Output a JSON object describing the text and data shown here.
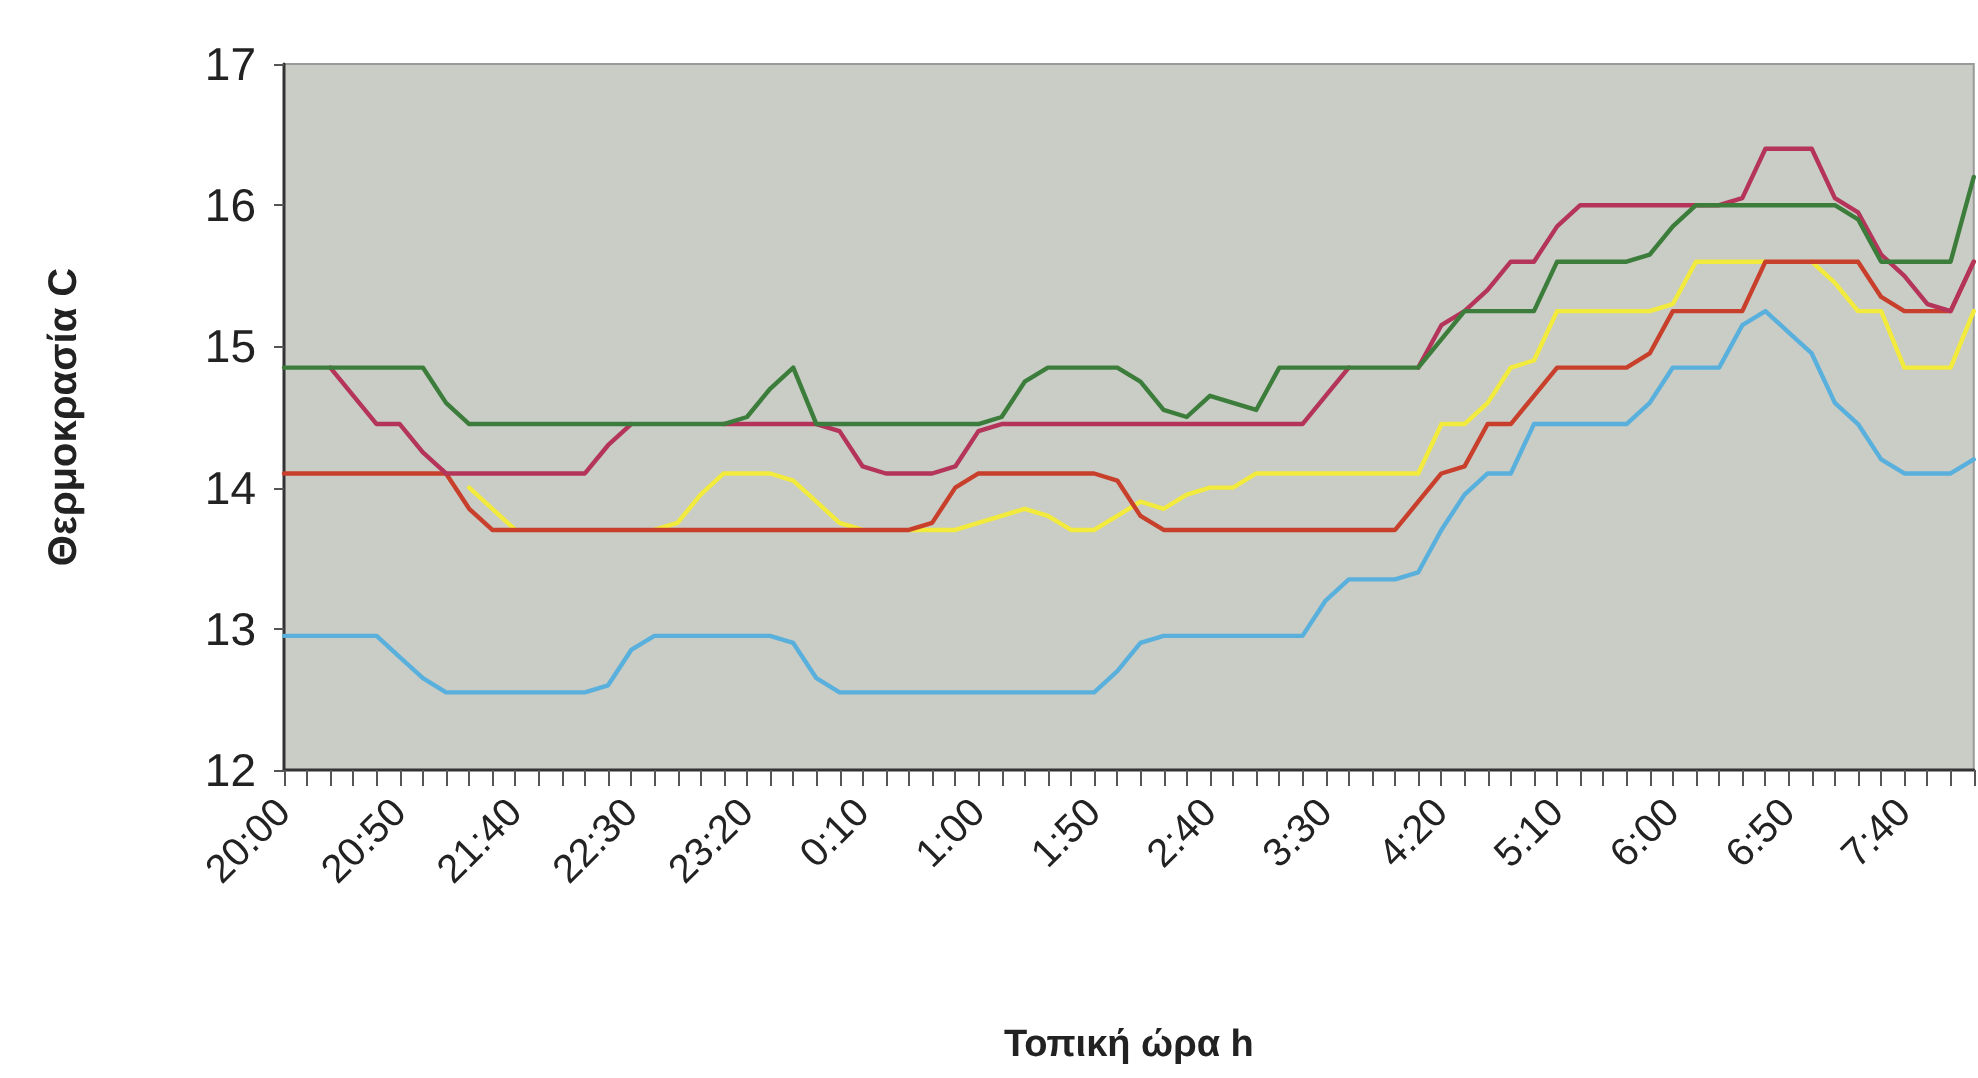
{
  "chart_data": {
    "type": "line",
    "xlabel": "Τοπική ώρα h",
    "ylabel": "Θερμοκρασία C",
    "marker": "none",
    "line_style": "solid",
    "grid": false,
    "categories": [
      "20:00",
      null,
      null,
      null,
      null,
      "20:50",
      null,
      null,
      null,
      null,
      "21:40",
      null,
      null,
      null,
      null,
      "22:30",
      null,
      null,
      null,
      null,
      "23:20",
      null,
      null,
      null,
      null,
      "0:10",
      null,
      null,
      null,
      null,
      "1:00",
      null,
      null,
      null,
      null,
      "1:50",
      null,
      null,
      null,
      null,
      "2:40",
      null,
      null,
      null,
      null,
      "3:30",
      null,
      null,
      null,
      null,
      "4:20",
      null,
      null,
      null,
      null,
      "5:10",
      null,
      null,
      null,
      null,
      "6:00",
      null,
      null,
      null,
      null,
      "6:50",
      null,
      null,
      null,
      null,
      "7:40",
      null,
      null,
      null
    ],
    "ylim": [
      12,
      17
    ],
    "yticks": [
      12,
      13,
      14,
      15,
      16,
      17
    ],
    "series": [
      {
        "color": "#5ab0dc",
        "values": [
          12.95,
          12.95,
          12.95,
          12.95,
          12.95,
          12.8,
          12.65,
          12.55,
          12.55,
          12.55,
          12.55,
          12.55,
          12.55,
          12.55,
          12.6,
          12.85,
          12.95,
          12.95,
          12.95,
          12.95,
          12.95,
          12.95,
          12.9,
          12.65,
          12.55,
          12.55,
          12.55,
          12.55,
          12.55,
          12.55,
          12.55,
          12.55,
          12.55,
          12.55,
          12.55,
          12.55,
          12.7,
          12.9,
          12.95,
          12.95,
          12.95,
          12.95,
          12.95,
          12.95,
          12.95,
          13.2,
          13.35,
          13.35,
          13.35,
          13.4,
          13.7,
          13.95,
          14.1,
          14.1,
          14.45,
          14.45,
          14.45,
          14.45,
          14.45,
          14.6,
          14.85,
          14.85,
          14.85,
          15.15,
          15.25,
          15.1,
          14.95,
          14.6,
          14.45,
          14.2,
          14.1,
          14.1,
          14.1,
          14.2
        ]
      },
      {
        "color": "#f2ea3c",
        "values": [
          null,
          null,
          null,
          null,
          null,
          null,
          null,
          null,
          14.0,
          13.85,
          13.7,
          null,
          null,
          null,
          null,
          null,
          13.7,
          13.75,
          13.95,
          14.1,
          14.1,
          14.1,
          14.05,
          13.9,
          13.75,
          13.7,
          null,
          13.7,
          13.7,
          13.7,
          13.75,
          13.8,
          13.85,
          13.8,
          13.7,
          13.7,
          13.8,
          13.9,
          13.85,
          13.95,
          14.0,
          14.0,
          14.1,
          14.1,
          14.1,
          14.1,
          14.1,
          14.1,
          14.1,
          14.1,
          14.45,
          14.45,
          14.6,
          14.85,
          14.9,
          15.25,
          15.25,
          15.25,
          15.25,
          15.25,
          15.3,
          15.6,
          15.6,
          15.6,
          15.6,
          null,
          15.6,
          15.45,
          15.25,
          15.25,
          14.85,
          14.85,
          14.85,
          15.25
        ]
      },
      {
        "color": "#c8402c",
        "values": [
          14.1,
          14.1,
          14.1,
          14.1,
          14.1,
          14.1,
          14.1,
          14.1,
          13.85,
          13.7,
          13.7,
          13.7,
          13.7,
          13.7,
          13.7,
          13.7,
          13.7,
          13.7,
          13.7,
          13.7,
          13.7,
          13.7,
          13.7,
          13.7,
          13.7,
          13.7,
          13.7,
          13.7,
          13.75,
          14.0,
          14.1,
          14.1,
          14.1,
          14.1,
          14.1,
          14.1,
          14.05,
          13.8,
          13.7,
          13.7,
          13.7,
          13.7,
          13.7,
          13.7,
          13.7,
          13.7,
          13.7,
          13.7,
          13.7,
          13.9,
          14.1,
          14.15,
          14.45,
          14.45,
          14.65,
          14.85,
          14.85,
          14.85,
          14.85,
          14.95,
          15.25,
          15.25,
          15.25,
          15.25,
          15.6,
          15.6,
          15.6,
          15.6,
          15.6,
          15.35,
          15.25,
          15.25,
          15.25,
          15.6
        ]
      },
      {
        "color": "#b4345a",
        "values": [
          null,
          null,
          14.85,
          14.65,
          14.45,
          14.45,
          14.25,
          14.1,
          14.1,
          14.1,
          14.1,
          14.1,
          14.1,
          14.1,
          14.3,
          14.45,
          null,
          null,
          null,
          14.45,
          14.45,
          14.45,
          14.45,
          14.45,
          14.4,
          14.15,
          14.1,
          14.1,
          14.1,
          14.15,
          14.4,
          14.45,
          14.45,
          14.45,
          14.45,
          14.45,
          14.45,
          14.45,
          14.45,
          14.45,
          14.45,
          14.45,
          14.45,
          14.45,
          14.45,
          14.65,
          14.85,
          null,
          null,
          14.85,
          15.15,
          15.25,
          15.4,
          15.6,
          15.6,
          15.85,
          16.0,
          16.0,
          16.0,
          16.0,
          16.0,
          16.0,
          16.0,
          16.05,
          16.4,
          16.4,
          16.4,
          16.05,
          15.95,
          15.65,
          15.5,
          15.3,
          15.25,
          15.6
        ]
      },
      {
        "color": "#3c7d3c",
        "values": [
          14.85,
          14.85,
          14.85,
          14.85,
          14.85,
          14.85,
          14.85,
          14.6,
          14.45,
          14.45,
          14.45,
          14.45,
          14.45,
          14.45,
          14.45,
          14.45,
          14.45,
          14.45,
          14.45,
          14.45,
          14.5,
          14.7,
          14.85,
          14.45,
          14.45,
          14.45,
          14.45,
          14.45,
          14.45,
          14.45,
          14.45,
          14.5,
          14.75,
          14.85,
          14.85,
          14.85,
          14.85,
          14.75,
          14.55,
          14.5,
          14.65,
          14.6,
          14.55,
          14.85,
          14.85,
          14.85,
          14.85,
          14.85,
          14.85,
          14.85,
          15.05,
          15.25,
          15.25,
          15.25,
          15.25,
          15.6,
          15.6,
          15.6,
          15.6,
          15.65,
          15.85,
          16.0,
          16.0,
          16.0,
          16.0,
          16.0,
          16.0,
          16.0,
          15.9,
          15.6,
          15.6,
          15.6,
          15.6,
          16.2
        ]
      }
    ]
  }
}
